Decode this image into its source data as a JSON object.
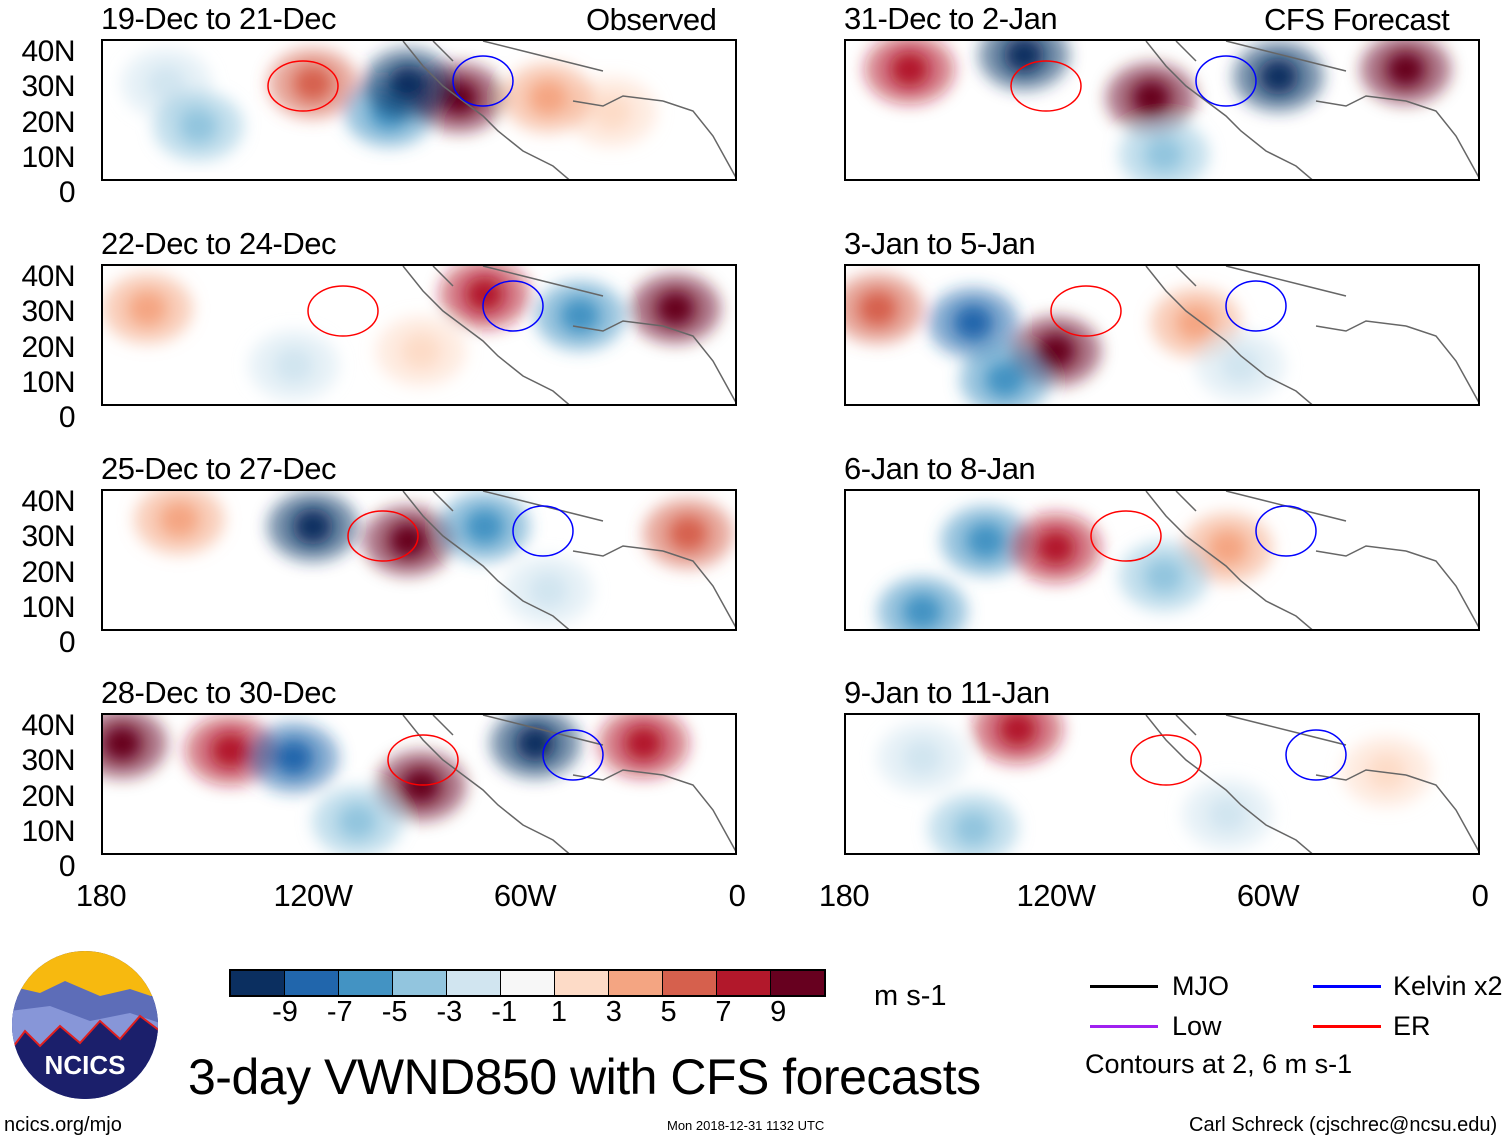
{
  "title": "3-day VWND850 with CFS forecasts",
  "left_label": "Observed",
  "right_label": "CFS Forecast",
  "panels_left": [
    "19-Dec to 21-Dec",
    "22-Dec to 24-Dec",
    "25-Dec to 27-Dec",
    "28-Dec to 30-Dec"
  ],
  "panels_right": [
    "31-Dec to 2-Jan",
    "3-Jan to 5-Jan",
    "6-Jan to 8-Jan",
    "9-Jan to 11-Jan"
  ],
  "lat_labels": [
    "40N",
    "30N",
    "20N",
    "10N",
    "0"
  ],
  "lon_labels": [
    "180",
    "120W",
    "60W",
    "0"
  ],
  "colorbar": {
    "colors": [
      "#0b2f60",
      "#2166ac",
      "#4393c3",
      "#92c5de",
      "#d1e5f0",
      "#f7f7f7",
      "#fddbc7",
      "#f4a582",
      "#d6604d",
      "#b2182b",
      "#67001f"
    ],
    "labels": [
      "-9",
      "-7",
      "-5",
      "-3",
      "-1",
      "1",
      "3",
      "5",
      "7",
      "9"
    ],
    "units": "m s-1"
  },
  "legend": [
    {
      "label": "MJO",
      "color": "#000000"
    },
    {
      "label": "Kelvin x2",
      "color": "#0000ff"
    },
    {
      "label": "Low",
      "color": "#a020f0"
    },
    {
      "label": "ER",
      "color": "#ff0000"
    }
  ],
  "contours_note": "Contours at 2, 6 m s-1",
  "logo_text": "NCICS",
  "footer": {
    "left": "ncics.org/mjo",
    "center": "Mon 2018-12-31 1132 UTC",
    "right": "Carl Schreck (cjschrec@ncsu.edu)"
  }
}
